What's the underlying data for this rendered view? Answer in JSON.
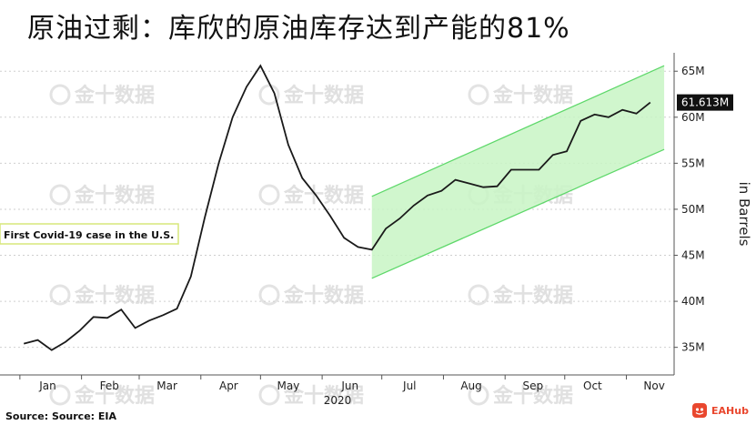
{
  "title": "原油过剩：库欣的原油库存达到产能的81%",
  "source": "Source: Source: EIA",
  "brand": {
    "text": "EAHub",
    "icon": "eahub-logo-icon",
    "color": "#e9472e"
  },
  "watermark": "金十数据",
  "annotation": "First Covid-19 case in the U.S.",
  "colors": {
    "line": "#1a1a1a",
    "channel_fill": "#c8f5c4",
    "channel_edge": "#5ed86a",
    "annotation_border": "#d7e77a"
  },
  "chart_data": {
    "type": "line",
    "year_label": "2020",
    "x_ticks": [
      "Jan",
      "Feb",
      "Mar",
      "Apr",
      "May",
      "Jun",
      "Jul",
      "Aug",
      "Sep",
      "Oct",
      "Nov"
    ],
    "y_ticks": [
      "35M",
      "40M",
      "45M",
      "50M",
      "55M",
      "60M",
      "65M"
    ],
    "ylabel": "in Barrels",
    "ylim": [
      32,
      67
    ],
    "grid": true,
    "last_value_label": "61.613M",
    "series": [
      {
        "x": [
          "2020-01-03",
          "2020-01-10",
          "2020-01-17",
          "2020-01-24",
          "2020-01-31",
          "2020-02-07",
          "2020-02-14",
          "2020-02-21",
          "2020-02-28",
          "2020-03-06",
          "2020-03-13",
          "2020-03-20",
          "2020-03-27",
          "2020-04-03",
          "2020-04-10",
          "2020-04-17",
          "2020-04-24",
          "2020-05-01",
          "2020-05-08",
          "2020-05-15",
          "2020-05-22",
          "2020-05-29",
          "2020-06-05",
          "2020-06-12",
          "2020-06-19",
          "2020-06-26",
          "2020-07-03",
          "2020-07-10",
          "2020-07-17",
          "2020-07-24",
          "2020-07-31",
          "2020-08-07",
          "2020-08-14",
          "2020-08-21",
          "2020-08-28",
          "2020-09-04",
          "2020-09-11",
          "2020-09-18",
          "2020-09-25",
          "2020-10-02",
          "2020-10-09",
          "2020-10-16",
          "2020-10-23",
          "2020-10-30",
          "2020-11-06",
          "2020-11-13"
        ],
        "values": [
          35.4,
          35.8,
          34.7,
          35.6,
          36.8,
          38.3,
          38.2,
          39.1,
          37.1,
          37.9,
          38.5,
          39.2,
          42.7,
          49.1,
          55.0,
          60.0,
          63.3,
          65.6,
          62.6,
          57.0,
          53.4,
          51.5,
          49.3,
          46.9,
          45.9,
          45.6,
          47.9,
          49.0,
          50.4,
          51.5,
          52.0,
          53.2,
          52.8,
          52.4,
          52.5,
          54.3,
          54.3,
          54.3,
          55.9,
          56.3,
          59.6,
          60.3,
          60.0,
          60.8,
          60.4,
          61.6
        ]
      }
    ],
    "channel": {
      "x_start": "2020-06-26",
      "x_end": "2020-11-20",
      "upper_start": 51.4,
      "upper_end": 65.6,
      "lower_start": 42.5,
      "lower_end": 56.5
    }
  }
}
